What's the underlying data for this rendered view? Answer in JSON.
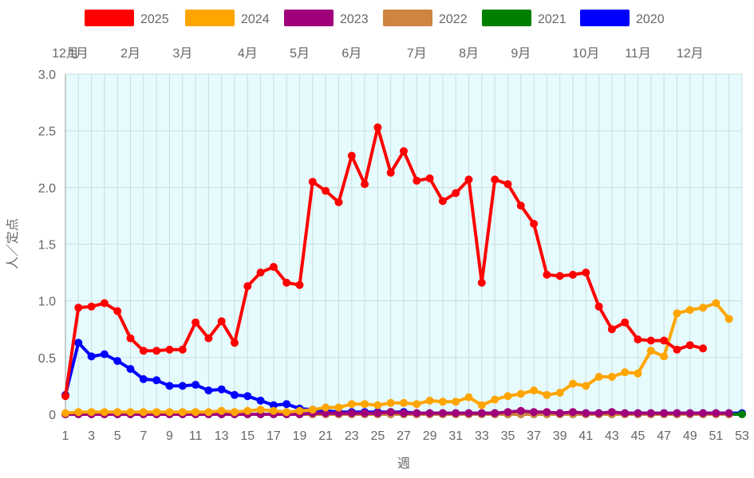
{
  "chart_data": {
    "type": "line",
    "xlabel": "週",
    "ylabel": "人／定点",
    "ylim": [
      0,
      3.0
    ],
    "yticks": [
      "0",
      "0.5",
      "1.0",
      "1.5",
      "2.0",
      "2.5",
      "3.0"
    ],
    "xlim": [
      1,
      53
    ],
    "xticks": [
      "1",
      "3",
      "5",
      "7",
      "9",
      "11",
      "13",
      "15",
      "17",
      "19",
      "21",
      "23",
      "25",
      "27",
      "29",
      "31",
      "33",
      "35",
      "37",
      "39",
      "41",
      "43",
      "45",
      "47",
      "49",
      "51",
      "53"
    ],
    "month_labels": [
      {
        "label": "12月",
        "week": 1
      },
      {
        "label": "1月",
        "week": 2
      },
      {
        "label": "2月",
        "week": 6
      },
      {
        "label": "3月",
        "week": 10
      },
      {
        "label": "4月",
        "week": 15
      },
      {
        "label": "5月",
        "week": 19
      },
      {
        "label": "6月",
        "week": 23
      },
      {
        "label": "7月",
        "week": 28
      },
      {
        "label": "8月",
        "week": 32
      },
      {
        "label": "9月",
        "week": 36
      },
      {
        "label": "10月",
        "week": 41
      },
      {
        "label": "11月",
        "week": 45
      },
      {
        "label": "12月",
        "week": 49
      }
    ],
    "plot_background": "#e6fbfd",
    "grid": true,
    "legend_position": "top",
    "series": [
      {
        "name": "2025",
        "color": "#ff0000",
        "start_week": 1,
        "values": [
          0.16,
          0.94,
          0.95,
          0.98,
          0.91,
          0.67,
          0.56,
          0.56,
          0.57,
          0.57,
          0.81,
          0.67,
          0.82,
          0.63,
          1.13,
          1.25,
          1.3,
          1.16,
          1.14,
          2.05,
          1.97,
          1.87,
          2.28,
          2.03,
          2.53,
          2.13,
          2.32,
          2.06,
          2.08,
          1.88,
          1.95,
          2.07,
          1.16,
          2.07,
          2.03,
          1.84,
          1.68,
          1.23,
          1.22,
          1.23,
          1.25,
          0.95,
          0.75,
          0.81,
          0.66,
          0.65,
          0.65,
          0.57,
          0.61,
          0.58
        ]
      },
      {
        "name": "2024",
        "color": "#ffa500",
        "start_week": 1,
        "values": [
          0.01,
          0.02,
          0.02,
          0.02,
          0.02,
          0.02,
          0.02,
          0.02,
          0.02,
          0.02,
          0.02,
          0.02,
          0.03,
          0.02,
          0.03,
          0.04,
          0.03,
          0.02,
          0.03,
          0.04,
          0.06,
          0.06,
          0.09,
          0.09,
          0.08,
          0.1,
          0.1,
          0.09,
          0.12,
          0.11,
          0.11,
          0.15,
          0.08,
          0.13,
          0.16,
          0.18,
          0.21,
          0.17,
          0.19,
          0.27,
          0.25,
          0.33,
          0.33,
          0.37,
          0.36,
          0.56,
          0.51,
          0.89,
          0.92,
          0.94,
          0.98,
          0.84
        ]
      },
      {
        "name": "2023",
        "color": "#a0007a",
        "start_week": 1,
        "values": [
          0,
          0,
          0,
          0,
          0,
          0,
          0,
          0,
          0,
          0,
          0,
          0,
          0,
          0,
          0,
          0,
          0,
          0,
          0,
          0.01,
          0.01,
          0.01,
          0.01,
          0.01,
          0.01,
          0.02,
          0.01,
          0.01,
          0.01,
          0.01,
          0.01,
          0.01,
          0.01,
          0.01,
          0.02,
          0.03,
          0.02,
          0.02,
          0.01,
          0.02,
          0.01,
          0.01,
          0.02,
          0.01,
          0.01,
          0.01,
          0.01,
          0.01,
          0.01,
          0.01,
          0.01,
          0.01
        ]
      },
      {
        "name": "2022",
        "color": "#cd853f",
        "start_week": 1,
        "values": [
          0,
          0,
          0,
          0,
          0,
          0,
          0,
          0,
          0,
          0,
          0,
          0,
          0,
          0,
          0,
          0,
          0,
          0,
          0,
          0,
          0,
          0,
          0,
          0,
          0,
          0,
          0,
          0,
          0,
          0,
          0,
          0,
          0,
          0,
          0,
          0,
          0,
          0,
          0,
          0,
          0,
          0,
          0,
          0,
          0,
          0,
          0,
          0,
          0,
          0,
          0,
          0
        ]
      },
      {
        "name": "2021",
        "color": "#008000",
        "start_week": 1,
        "values": [
          0,
          0,
          0,
          0,
          0,
          0,
          0,
          0,
          0,
          0,
          0,
          0,
          0,
          0,
          0,
          0,
          0,
          0,
          0,
          0,
          0,
          0,
          0,
          0,
          0,
          0,
          0,
          0,
          0,
          0,
          0,
          0,
          0,
          0,
          0,
          0,
          0,
          0,
          0,
          0,
          0,
          0,
          0,
          0,
          0,
          0,
          0,
          0,
          0,
          0,
          0,
          0,
          0
        ]
      },
      {
        "name": "2020",
        "color": "#0000ff",
        "start_week": 1,
        "values": [
          0.17,
          0.63,
          0.51,
          0.53,
          0.47,
          0.4,
          0.31,
          0.3,
          0.25,
          0.25,
          0.26,
          0.21,
          0.22,
          0.17,
          0.16,
          0.12,
          0.08,
          0.09,
          0.05,
          0.04,
          0.03,
          0.02,
          0.02,
          0.02,
          0.02,
          0.02,
          0.02,
          0.01,
          0.01,
          0.01,
          0.01,
          0.01,
          0.01,
          0.01,
          0.01,
          0.01,
          0.01,
          0.01,
          0.01,
          0.01,
          0.01,
          0.01,
          0.01,
          0.01,
          0.01,
          0.01,
          0.01,
          0.01,
          0.01,
          0.01,
          0.01,
          0.01,
          0.01
        ]
      }
    ]
  }
}
